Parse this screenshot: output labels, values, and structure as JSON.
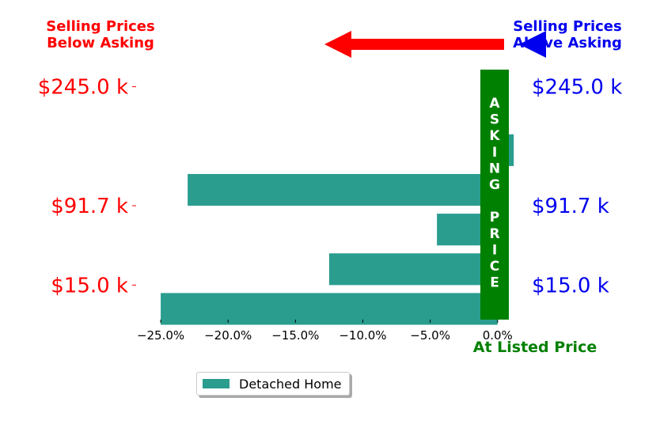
{
  "chart_data": {
    "type": "bar",
    "orientation": "horizontal",
    "series": [
      {
        "name": "Detached Home",
        "color": "#2a9d8f",
        "values": [
          -25.0,
          -12.5,
          -4.5,
          -23.0,
          1.2
        ]
      }
    ],
    "xlim": [
      -27,
      1.6
    ],
    "x_ticks": [
      -25,
      -20,
      -15,
      -10,
      -5,
      0
    ],
    "x_tick_labels": [
      "−25.0%",
      "−20.0%",
      "−15.0%",
      "−10.0%",
      "−5.0%",
      "0.0%"
    ],
    "price_labels_left": [
      "$245.0 k",
      "$91.7 k",
      "$15.0 k"
    ],
    "price_labels_right": [
      "$245.0 k",
      "$91.7 k",
      "$15.0 k"
    ],
    "price_label_rows": [
      5.6,
      2.6,
      0.6
    ],
    "y_range": [
      -0.25,
      6.15
    ],
    "legend_position": "bottom-center",
    "grid": false
  },
  "annotations": {
    "below_asking": [
      "Selling Prices",
      "Below Asking"
    ],
    "above_asking": [
      "Selling Prices",
      "Above Asking"
    ],
    "asking_price_letters": [
      "A",
      "S",
      "K",
      "I",
      "N",
      "G",
      "",
      "P",
      "R",
      "I",
      "C",
      "E"
    ],
    "at_listed_price": "At Listed Price"
  },
  "colors": {
    "below": "#ff0000",
    "above": "#0000ee",
    "asking": "#008000",
    "bar": "#2a9d8f"
  }
}
